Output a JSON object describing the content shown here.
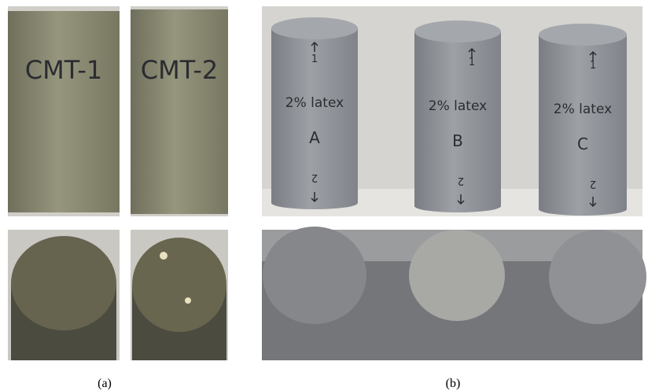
{
  "figure": {
    "panel_a": {
      "caption": "(a)",
      "specimens": [
        {
          "label": "CMT-1"
        },
        {
          "label": "CMT-2"
        }
      ]
    },
    "panel_b": {
      "caption": "(b)",
      "specimens": [
        {
          "top_mark": "1",
          "text": "2% latex",
          "letter": "A",
          "bottom_mark": "2"
        },
        {
          "top_mark": "1",
          "text": "2% latex",
          "letter": "B",
          "bottom_mark": "2"
        },
        {
          "top_mark": "1",
          "text": "2% latex",
          "letter": "C",
          "bottom_mark": "2"
        }
      ]
    }
  }
}
